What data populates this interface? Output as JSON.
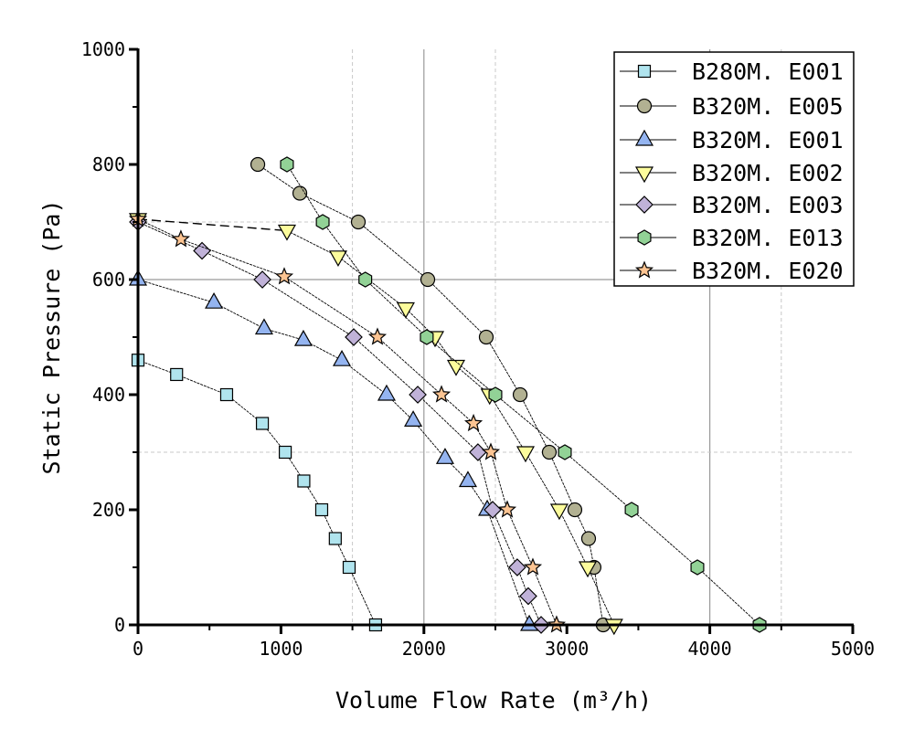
{
  "chart_data": {
    "type": "line",
    "title": "",
    "xlabel": "Volume Flow Rate (m³/h)",
    "ylabel": "Static Pressure (Pa)",
    "xlim": [
      0,
      5000
    ],
    "ylim": [
      0,
      1000
    ],
    "xticks": [
      "0",
      "1000",
      "2000",
      "3000",
      "4000",
      "5000"
    ],
    "yticks": [
      "0",
      "200",
      "400",
      "600",
      "800",
      "1000"
    ],
    "grid": true,
    "legend_position": "top-right",
    "series": [
      {
        "name": "B280M. E001",
        "marker": "square",
        "color": "#b0e4ee",
        "x": [
          0,
          270,
          620,
          870,
          1030,
          1160,
          1285,
          1380,
          1477,
          1662
        ],
        "y": [
          460,
          435,
          400,
          350,
          300,
          250,
          200,
          150,
          100,
          0
        ]
      },
      {
        "name": "B320M. E005",
        "marker": "circle",
        "color": "#b2b192",
        "x": [
          838,
          1132,
          1541,
          2027,
          2436,
          2673,
          2877,
          3056,
          3152,
          3190,
          3254
        ],
        "y": [
          800,
          750,
          700,
          600,
          500,
          400,
          300,
          200,
          150,
          100,
          0
        ]
      },
      {
        "name": "B320M. E001",
        "marker": "triangle-up",
        "color": "#94b4f0",
        "x": [
          0,
          531,
          882,
          1157,
          1426,
          1739,
          1925,
          2148,
          2308,
          2443,
          2737
        ],
        "y": [
          600,
          560,
          515,
          495,
          460,
          400,
          355,
          290,
          250,
          200,
          0
        ]
      },
      {
        "name": "B320M. E002",
        "marker": "triangle-down",
        "color": "#fcfc9c",
        "x": [
          0,
          1042,
          1400,
          1873,
          2078,
          2225,
          2460,
          2711,
          2947,
          3146,
          3330
        ],
        "y": [
          705,
          685,
          640,
          550,
          500,
          450,
          400,
          300,
          200,
          100,
          0
        ]
      },
      {
        "name": "B320M. E003",
        "marker": "diamond",
        "color": "#c0b2d8",
        "x": [
          0,
          448,
          870,
          1509,
          1957,
          2378,
          2481,
          2653,
          2730,
          2820
        ],
        "y": [
          700,
          650,
          600,
          500,
          400,
          300,
          200,
          100,
          50,
          0
        ]
      },
      {
        "name": "B320M. E013",
        "marker": "hexagon",
        "color": "#92d296",
        "x": [
          1042,
          1292,
          1590,
          2020,
          2500,
          2986,
          3453,
          3913,
          4348
        ],
        "y": [
          800,
          700,
          600,
          500,
          400,
          300,
          200,
          100,
          0
        ]
      },
      {
        "name": "B320M. E020",
        "marker": "star",
        "color": "#fcc492",
        "x": [
          0,
          300,
          1023,
          1675,
          2123,
          2347,
          2468,
          2583,
          2762,
          2928
        ],
        "y": [
          705,
          670,
          605,
          500,
          400,
          350,
          300,
          200,
          100,
          0
        ]
      }
    ]
  }
}
